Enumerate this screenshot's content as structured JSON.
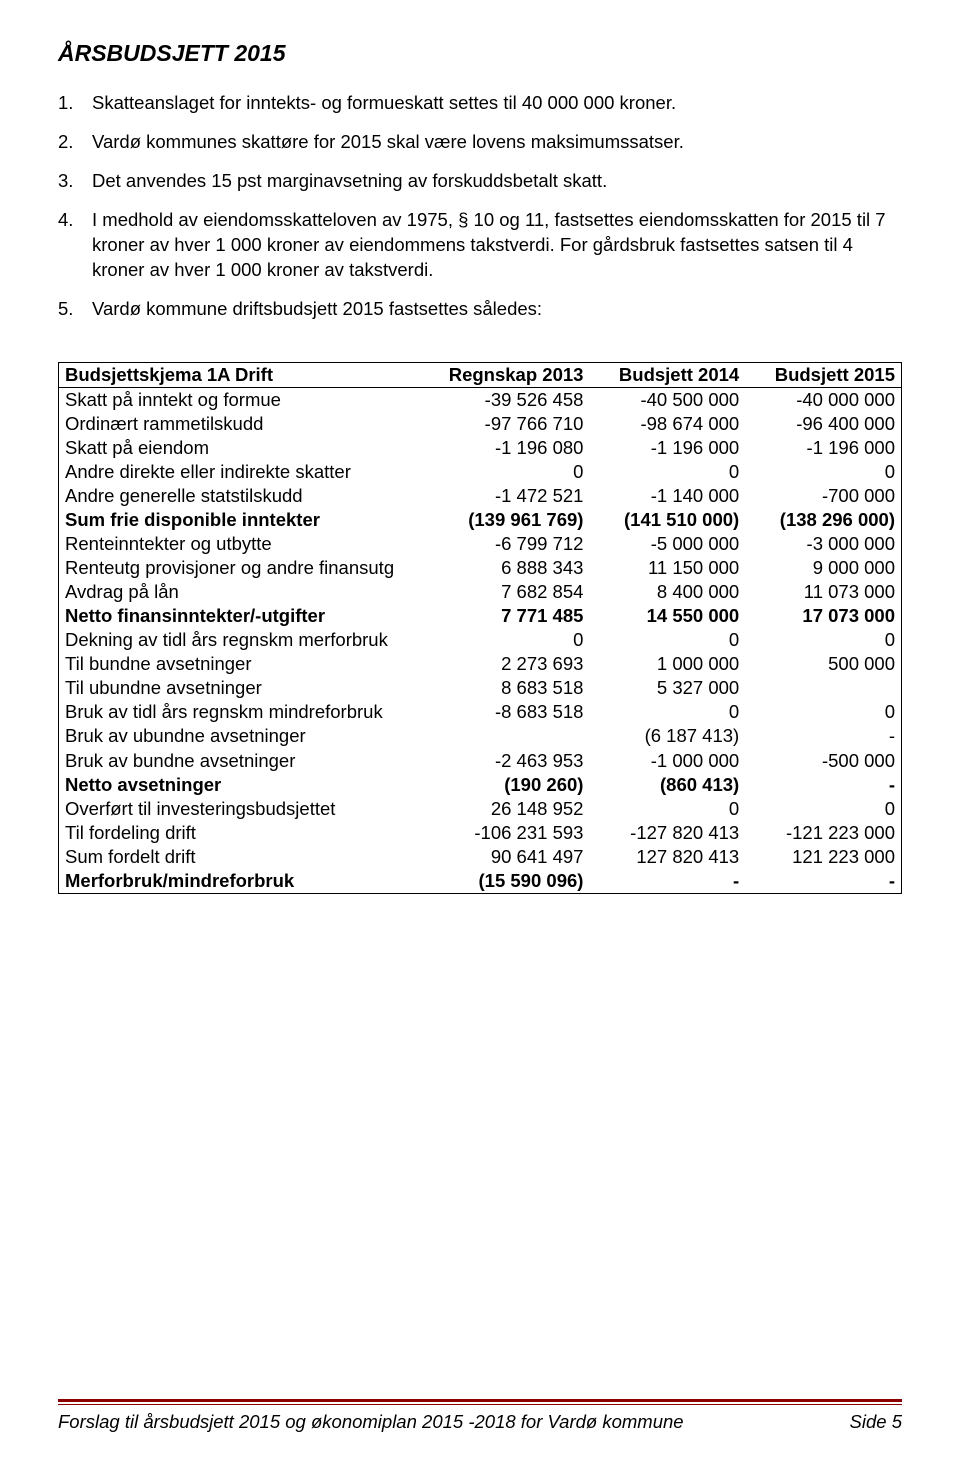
{
  "title": "ÅRSBUDSJETT 2015",
  "items": [
    {
      "n": "1.",
      "t": "Skatteanslaget for inntekts- og formueskatt settes til 40 000 000 kroner."
    },
    {
      "n": "2.",
      "t": "Vardø kommunes skattøre for 2015 skal være lovens maksimumssatser."
    },
    {
      "n": "3.",
      "t": "Det anvendes 15 pst marginavsetning av forskuddsbetalt skatt."
    },
    {
      "n": "4.",
      "t": "I medhold av eiendomsskatteloven av 1975, § 10 og 11, fastsettes eiendomsskatten for 2015 til 7 kroner av hver 1 000 kroner av eiendommens takstverdi. For gårdsbruk fastsettes satsen til 4 kroner av hver 1 000 kroner av takstverdi."
    },
    {
      "n": "5.",
      "t": "Vardø kommune driftsbudsjett 2015 fastsettes således:"
    }
  ],
  "table": {
    "headers": [
      "Budsjettskjema 1A Drift",
      "Regnskap 2013",
      "Budsjett 2014",
      "Budsjett 2015"
    ],
    "rows": [
      {
        "label": "Skatt på inntekt og formue",
        "c1": "-39 526 458",
        "c2": "-40 500 000",
        "c3": "-40 000 000",
        "bold": false
      },
      {
        "label": "Ordinært rammetilskudd",
        "c1": "-97 766 710",
        "c2": "-98 674 000",
        "c3": "-96 400 000",
        "bold": false
      },
      {
        "label": "Skatt på eiendom",
        "c1": "-1 196 080",
        "c2": "-1 196 000",
        "c3": "-1 196 000",
        "bold": false
      },
      {
        "label": "Andre direkte eller indirekte skatter",
        "c1": "0",
        "c2": "0",
        "c3": "0",
        "bold": false
      },
      {
        "label": "Andre generelle statstilskudd",
        "c1": "-1 472 521",
        "c2": "-1 140 000",
        "c3": "-700 000",
        "bold": false
      },
      {
        "label": "Sum frie disponible inntekter",
        "c1": "(139 961 769)",
        "c2": "(141 510 000)",
        "c3": "(138 296 000)",
        "bold": true
      },
      {
        "label": "Renteinntekter og utbytte",
        "c1": "-6 799 712",
        "c2": "-5 000 000",
        "c3": "-3 000 000",
        "bold": false
      },
      {
        "label": "Renteutg provisjoner og andre finansutg",
        "c1": "6 888 343",
        "c2": "11 150 000",
        "c3": "9 000 000",
        "bold": false
      },
      {
        "label": "Avdrag på lån",
        "c1": "7 682 854",
        "c2": "8 400 000",
        "c3": "11 073 000",
        "bold": false
      },
      {
        "label": "Netto finansinntekter/-utgifter",
        "c1": "7 771 485",
        "c2": "14 550 000",
        "c3": "17 073 000",
        "bold": true
      },
      {
        "label": "Dekning av tidl års regnskm merforbruk",
        "c1": "0",
        "c2": "0",
        "c3": "0",
        "bold": false
      },
      {
        "label": "Til bundne avsetninger",
        "c1": "2 273 693",
        "c2": "1 000 000",
        "c3": "500 000",
        "bold": false
      },
      {
        "label": "Til ubundne avsetninger",
        "c1": "8 683 518",
        "c2": "5 327 000",
        "c3": "",
        "bold": false
      },
      {
        "label": "Bruk av tidl års regnskm mindreforbruk",
        "c1": "-8 683 518",
        "c2": "0",
        "c3": "0",
        "bold": false
      },
      {
        "label": "Bruk av ubundne avsetninger",
        "c1": "",
        "c2": "(6 187 413)",
        "c3": "-",
        "bold": false
      },
      {
        "label": "Bruk av bundne avsetninger",
        "c1": "-2 463 953",
        "c2": "-1 000 000",
        "c3": "-500 000",
        "bold": false
      },
      {
        "label": "Netto avsetninger",
        "c1": "(190 260)",
        "c2": "(860 413)",
        "c3": "-",
        "bold": true
      },
      {
        "label": "Overført til investeringsbudsjettet",
        "c1": "26 148 952",
        "c2": "0",
        "c3": "0",
        "bold": false
      },
      {
        "label": "Til fordeling drift",
        "c1": "-106 231 593",
        "c2": "-127 820 413",
        "c3": "-121 223 000",
        "bold": false
      },
      {
        "label": "Sum fordelt drift",
        "c1": "90 641 497",
        "c2": "127 820 413",
        "c3": "121 223 000",
        "bold": false
      },
      {
        "label": "Merforbruk/mindreforbruk",
        "c1": "(15 590 096)",
        "c2": "-",
        "c3": "-",
        "bold": true
      }
    ]
  },
  "footer": {
    "left": "Forslag til årsbudsjett 2015 og økonomiplan 2015 -2018 for Vardø kommune",
    "right": "Side 5"
  },
  "colors": {
    "text": "#000000",
    "footer_rule": "#8b0000",
    "background": "#ffffff"
  },
  "typography": {
    "base_fontsize_pt": 14,
    "title_fontsize_pt": 17,
    "font_family": "Arial"
  }
}
